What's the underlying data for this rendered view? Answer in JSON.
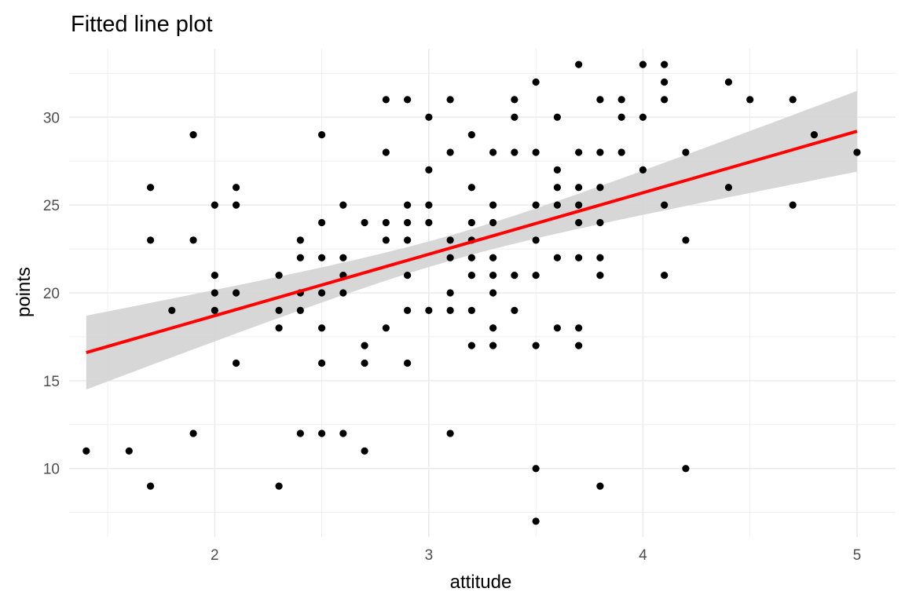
{
  "chart_data": {
    "type": "scatter",
    "title": "Fitted line plot",
    "xlabel": "attitude",
    "ylabel": "points",
    "xlim": [
      1.32,
      5.18
    ],
    "ylim": [
      6.1,
      33.9
    ],
    "xticks": [
      2,
      3,
      4,
      5
    ],
    "yticks": [
      10,
      15,
      20,
      25,
      30
    ],
    "xminor": [
      1.5,
      2.5,
      3.5,
      4.5
    ],
    "yminor": [
      7.5,
      12.5,
      17.5,
      22.5,
      27.5,
      32.5
    ],
    "grid": true,
    "colors": {
      "points": "#000000",
      "fit_line": "#ff0000",
      "ribbon": "#d3d3d3",
      "grid": "#ebebeb",
      "tick_text": "#4d4d4d"
    },
    "fit": {
      "x": [
        1.4,
        5.0
      ],
      "y": [
        16.6,
        29.2
      ],
      "ci_lower": [
        14.5,
        27.0
      ],
      "ci_upper": [
        18.7,
        31.5
      ]
    },
    "points": [
      [
        1.4,
        11
      ],
      [
        1.6,
        11
      ],
      [
        1.7,
        26
      ],
      [
        1.7,
        23
      ],
      [
        1.7,
        9
      ],
      [
        1.8,
        19
      ],
      [
        1.9,
        29
      ],
      [
        1.9,
        23
      ],
      [
        1.9,
        12
      ],
      [
        2.0,
        25
      ],
      [
        2.0,
        21
      ],
      [
        2.0,
        20
      ],
      [
        2.0,
        19
      ],
      [
        2.1,
        26
      ],
      [
        2.1,
        25
      ],
      [
        2.1,
        20
      ],
      [
        2.1,
        16
      ],
      [
        2.3,
        21
      ],
      [
        2.3,
        19
      ],
      [
        2.3,
        18
      ],
      [
        2.3,
        9
      ],
      [
        2.4,
        23
      ],
      [
        2.4,
        22
      ],
      [
        2.4,
        20
      ],
      [
        2.4,
        19
      ],
      [
        2.4,
        12
      ],
      [
        2.5,
        29
      ],
      [
        2.5,
        24
      ],
      [
        2.5,
        22
      ],
      [
        2.5,
        20
      ],
      [
        2.5,
        18
      ],
      [
        2.5,
        16
      ],
      [
        2.5,
        12
      ],
      [
        2.6,
        25
      ],
      [
        2.6,
        22
      ],
      [
        2.6,
        21
      ],
      [
        2.6,
        20
      ],
      [
        2.6,
        12
      ],
      [
        2.7,
        24
      ],
      [
        2.7,
        17
      ],
      [
        2.7,
        16
      ],
      [
        2.7,
        11
      ],
      [
        2.8,
        31
      ],
      [
        2.8,
        28
      ],
      [
        2.8,
        24
      ],
      [
        2.8,
        23
      ],
      [
        2.8,
        18
      ],
      [
        2.9,
        31
      ],
      [
        2.9,
        25
      ],
      [
        2.9,
        24
      ],
      [
        2.9,
        23
      ],
      [
        2.9,
        21
      ],
      [
        2.9,
        19
      ],
      [
        2.9,
        16
      ],
      [
        3.0,
        30
      ],
      [
        3.0,
        27
      ],
      [
        3.0,
        25
      ],
      [
        3.0,
        24
      ],
      [
        3.0,
        19
      ],
      [
        3.1,
        31
      ],
      [
        3.1,
        28
      ],
      [
        3.1,
        23
      ],
      [
        3.1,
        22
      ],
      [
        3.1,
        20
      ],
      [
        3.1,
        19
      ],
      [
        3.1,
        12
      ],
      [
        3.2,
        29
      ],
      [
        3.2,
        26
      ],
      [
        3.2,
        24
      ],
      [
        3.2,
        23
      ],
      [
        3.2,
        22
      ],
      [
        3.2,
        21
      ],
      [
        3.2,
        19
      ],
      [
        3.2,
        17
      ],
      [
        3.3,
        28
      ],
      [
        3.3,
        25
      ],
      [
        3.3,
        24
      ],
      [
        3.3,
        22
      ],
      [
        3.3,
        21
      ],
      [
        3.3,
        20
      ],
      [
        3.3,
        18
      ],
      [
        3.3,
        17
      ],
      [
        3.4,
        31
      ],
      [
        3.4,
        30
      ],
      [
        3.4,
        28
      ],
      [
        3.4,
        21
      ],
      [
        3.4,
        19
      ],
      [
        3.5,
        32
      ],
      [
        3.5,
        28
      ],
      [
        3.5,
        25
      ],
      [
        3.5,
        23
      ],
      [
        3.5,
        21
      ],
      [
        3.5,
        17
      ],
      [
        3.5,
        10
      ],
      [
        3.5,
        7
      ],
      [
        3.6,
        30
      ],
      [
        3.6,
        27
      ],
      [
        3.6,
        26
      ],
      [
        3.6,
        25
      ],
      [
        3.6,
        22
      ],
      [
        3.6,
        18
      ],
      [
        3.7,
        33
      ],
      [
        3.7,
        28
      ],
      [
        3.7,
        26
      ],
      [
        3.7,
        25
      ],
      [
        3.7,
        24
      ],
      [
        3.7,
        22
      ],
      [
        3.7,
        18
      ],
      [
        3.7,
        17
      ],
      [
        3.8,
        31
      ],
      [
        3.8,
        28
      ],
      [
        3.8,
        26
      ],
      [
        3.8,
        24
      ],
      [
        3.8,
        22
      ],
      [
        3.8,
        21
      ],
      [
        3.8,
        9
      ],
      [
        3.9,
        31
      ],
      [
        3.9,
        30
      ],
      [
        3.9,
        28
      ],
      [
        4.0,
        33
      ],
      [
        4.0,
        30
      ],
      [
        4.0,
        27
      ],
      [
        4.1,
        33
      ],
      [
        4.1,
        32
      ],
      [
        4.1,
        31
      ],
      [
        4.1,
        25
      ],
      [
        4.1,
        21
      ],
      [
        4.2,
        28
      ],
      [
        4.2,
        23
      ],
      [
        4.2,
        10
      ],
      [
        4.4,
        32
      ],
      [
        4.4,
        26
      ],
      [
        4.5,
        31
      ],
      [
        4.7,
        31
      ],
      [
        4.7,
        25
      ],
      [
        4.8,
        29
      ],
      [
        5.0,
        28
      ]
    ]
  }
}
